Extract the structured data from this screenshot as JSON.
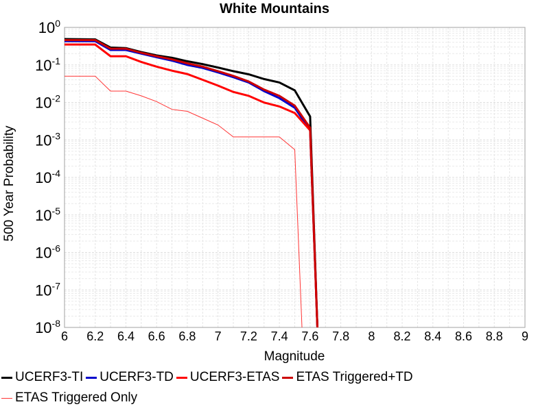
{
  "chart_data": {
    "type": "line",
    "title": "White Mountains",
    "xlabel": "Magnitude",
    "ylabel": "500 Year Probability",
    "xlim": [
      6,
      9
    ],
    "ylim": [
      1e-08,
      1
    ],
    "yscale": "log",
    "grid": true,
    "legend_position": "bottom",
    "x_ticks": [
      "6",
      "6.2",
      "6.4",
      "6.6",
      "6.8",
      "7",
      "7.2",
      "7.4",
      "7.6",
      "7.8",
      "8",
      "8.2",
      "8.4",
      "8.6",
      "8.8",
      "9"
    ],
    "y_ticks": [
      {
        "base": "10",
        "exp": "0",
        "value": 1
      },
      {
        "base": "10",
        "exp": "-1",
        "value": 0.1
      },
      {
        "base": "10",
        "exp": "-2",
        "value": 0.01
      },
      {
        "base": "10",
        "exp": "-3",
        "value": 0.001
      },
      {
        "base": "10",
        "exp": "-4",
        "value": 0.0001
      },
      {
        "base": "10",
        "exp": "-5",
        "value": 1e-05
      },
      {
        "base": "10",
        "exp": "-6",
        "value": 1e-06
      },
      {
        "base": "10",
        "exp": "-7",
        "value": 1e-07
      },
      {
        "base": "10",
        "exp": "-8",
        "value": 1e-08
      }
    ],
    "series": [
      {
        "name": "UCERF3-TI",
        "color": "#000000",
        "width": 3,
        "x": [
          6.0,
          6.2,
          6.3,
          6.4,
          6.5,
          6.6,
          6.7,
          6.8,
          6.9,
          7.0,
          7.1,
          7.2,
          7.3,
          7.4,
          7.5,
          7.6,
          7.65
        ],
        "y": [
          0.49,
          0.48,
          0.29,
          0.28,
          0.22,
          0.18,
          0.155,
          0.125,
          0.105,
          0.085,
          0.068,
          0.056,
          0.042,
          0.034,
          0.021,
          0.0042,
          1e-09
        ]
      },
      {
        "name": "UCERF3-TD",
        "color": "#0000cc",
        "width": 3,
        "x": [
          6.0,
          6.2,
          6.3,
          6.4,
          6.5,
          6.6,
          6.7,
          6.8,
          6.9,
          7.0,
          7.1,
          7.2,
          7.3,
          7.4,
          7.5,
          7.6,
          7.65
        ],
        "y": [
          0.43,
          0.43,
          0.25,
          0.25,
          0.2,
          0.16,
          0.13,
          0.1,
          0.083,
          0.063,
          0.047,
          0.034,
          0.02,
          0.013,
          0.0072,
          0.0018,
          1e-09
        ]
      },
      {
        "name": "UCERF3-ETAS",
        "color": "#ff0000",
        "width": 3,
        "x": [
          6.0,
          6.2,
          6.3,
          6.4,
          6.5,
          6.6,
          6.7,
          6.8,
          6.9,
          7.0,
          7.1,
          7.2,
          7.3,
          7.4,
          7.5,
          7.6,
          7.65
        ],
        "y": [
          0.35,
          0.35,
          0.17,
          0.17,
          0.12,
          0.09,
          0.07,
          0.057,
          0.04,
          0.028,
          0.019,
          0.015,
          0.0099,
          0.0078,
          0.0052,
          0.0018,
          1e-09
        ]
      },
      {
        "name": "ETAS Triggered+TD",
        "color": "#cc0000",
        "width": 3,
        "x": [
          6.0,
          6.2,
          6.3,
          6.4,
          6.5,
          6.6,
          6.7,
          6.8,
          6.9,
          7.0,
          7.1,
          7.2,
          7.3,
          7.4,
          7.5,
          7.6,
          7.65
        ],
        "y": [
          0.46,
          0.46,
          0.27,
          0.27,
          0.21,
          0.17,
          0.14,
          0.11,
          0.09,
          0.068,
          0.051,
          0.036,
          0.022,
          0.015,
          0.0082,
          0.0021,
          1e-09
        ]
      },
      {
        "name": "ETAS Triggered Only",
        "color": "#ff3333",
        "width": 1,
        "x": [
          6.0,
          6.2,
          6.3,
          6.4,
          6.5,
          6.6,
          6.7,
          6.8,
          6.9,
          7.0,
          7.1,
          7.2,
          7.3,
          7.4,
          7.5,
          7.55
        ],
        "y": [
          0.05,
          0.05,
          0.02,
          0.02,
          0.015,
          0.0105,
          0.0065,
          0.0058,
          0.0038,
          0.0025,
          0.0012,
          0.0012,
          0.0012,
          0.0012,
          0.00055,
          1e-09
        ]
      }
    ]
  }
}
